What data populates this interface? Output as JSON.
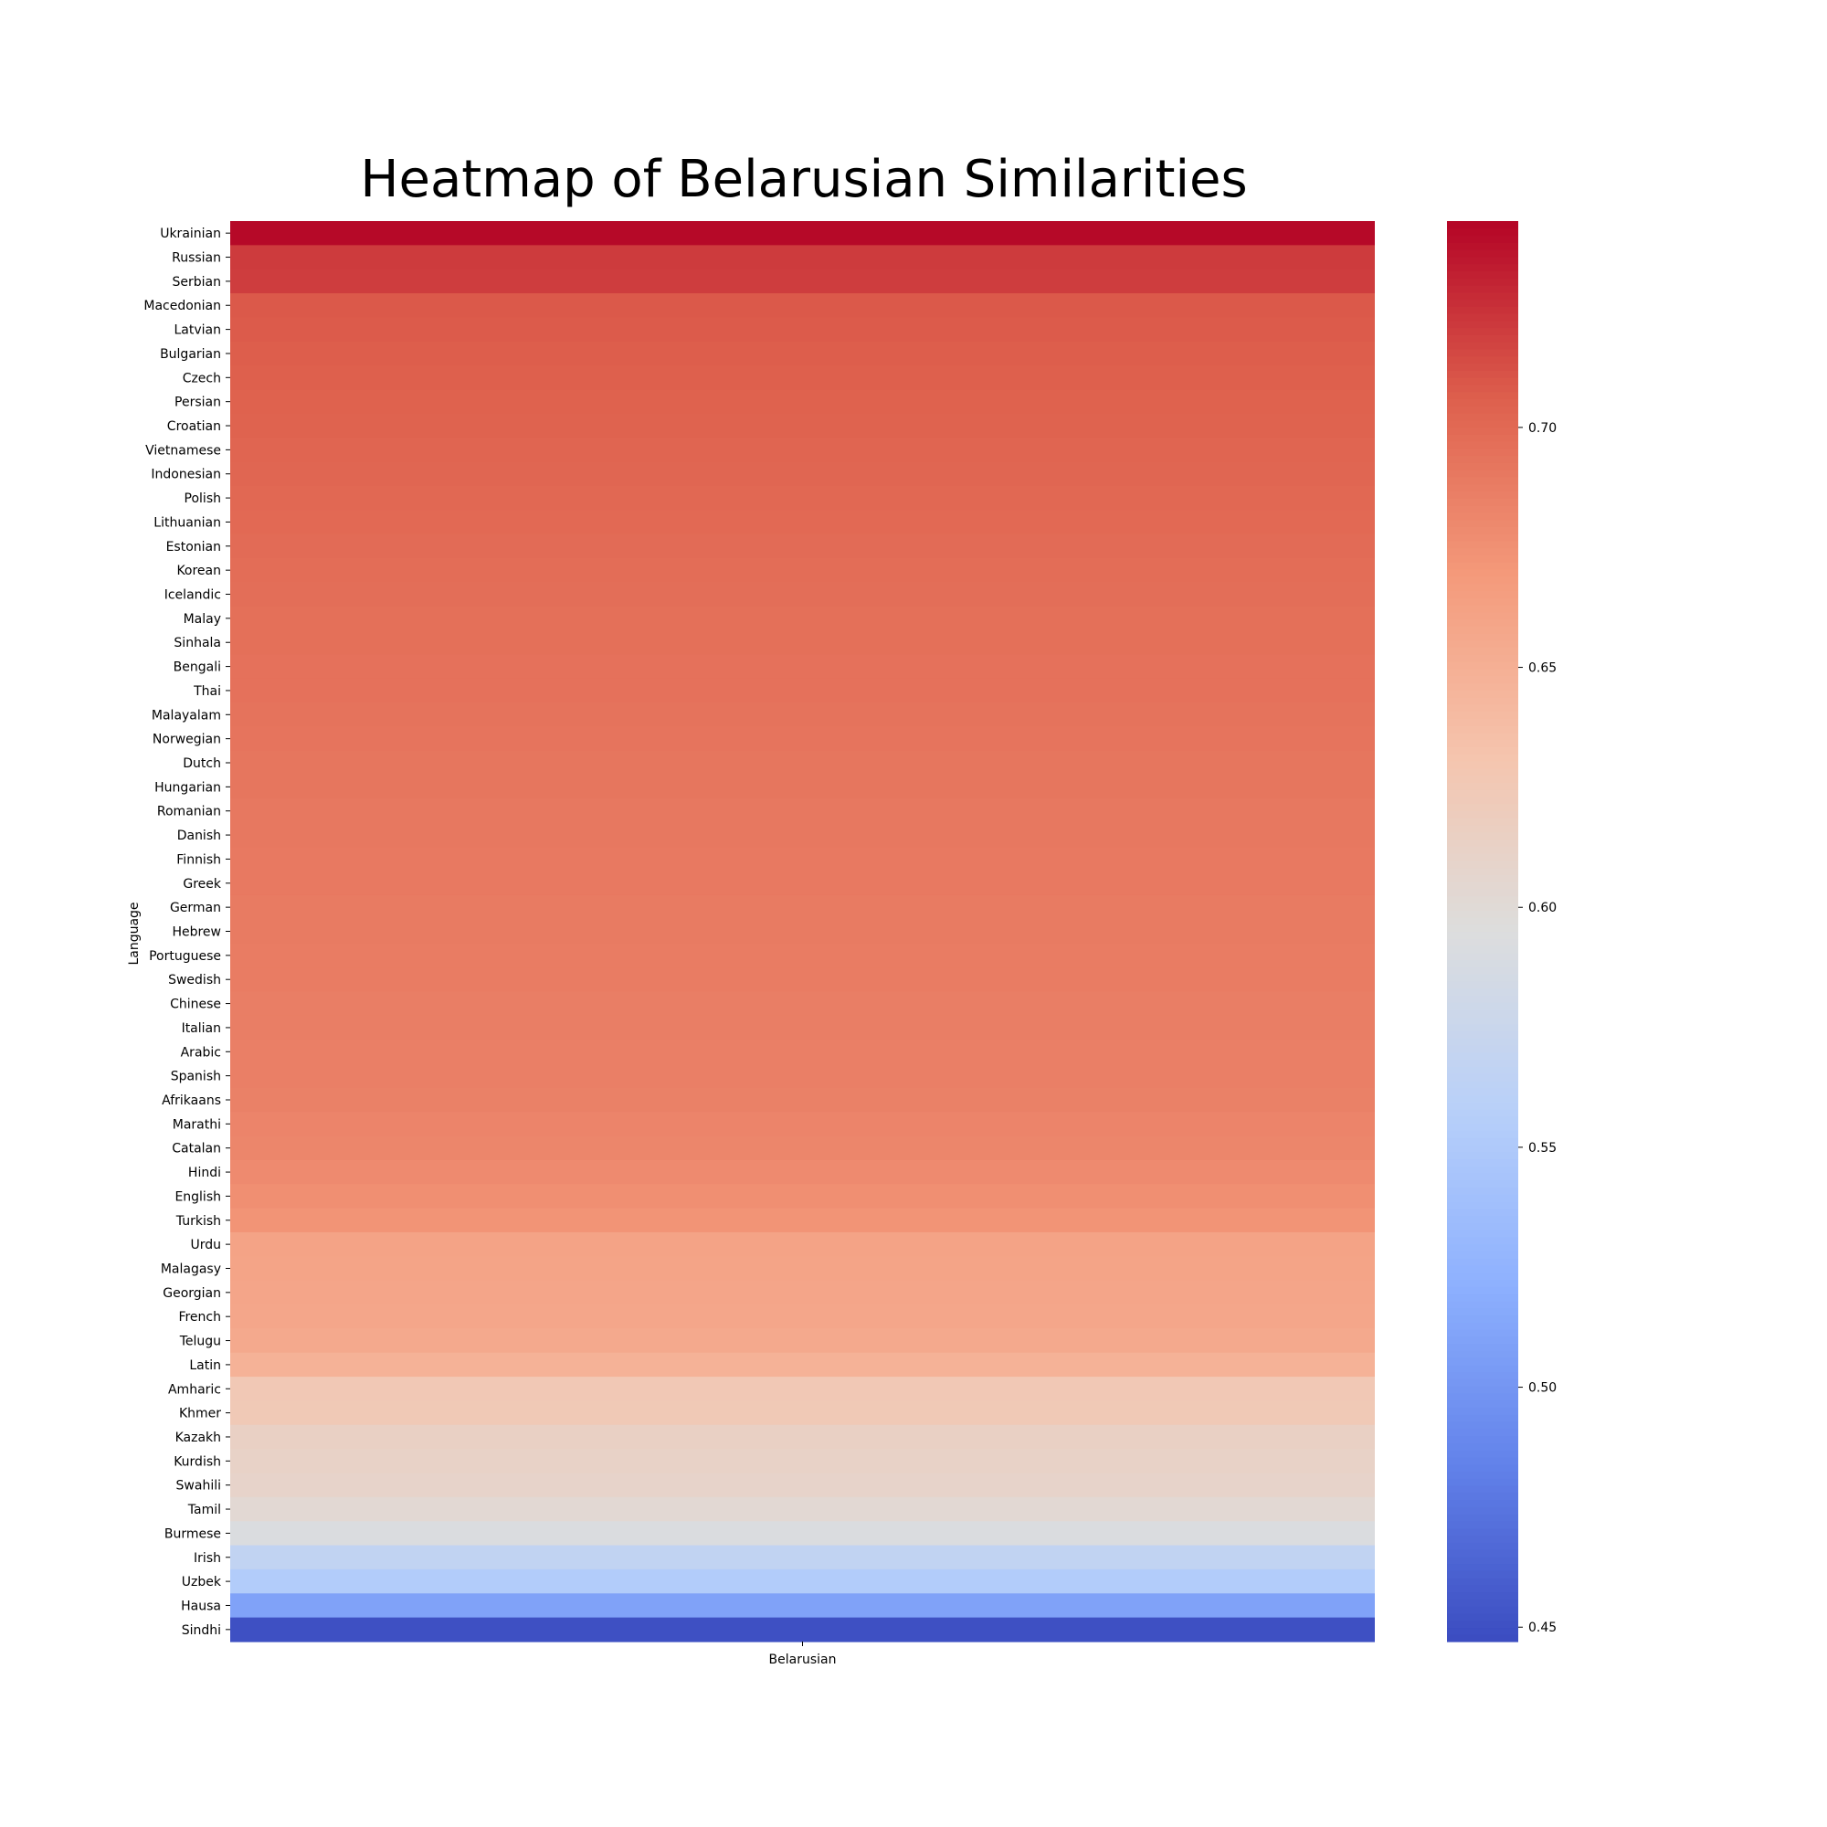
{
  "chart_data": {
    "type": "heatmap",
    "title": "Heatmap of Belarusian Similarities",
    "xlabel": "",
    "ylabel": "Language",
    "columns": [
      "Belarusian"
    ],
    "rows": [
      "Ukrainian",
      "Russian",
      "Serbian",
      "Macedonian",
      "Latvian",
      "Bulgarian",
      "Czech",
      "Persian",
      "Croatian",
      "Vietnamese",
      "Indonesian",
      "Polish",
      "Lithuanian",
      "Estonian",
      "Korean",
      "Icelandic",
      "Malay",
      "Sinhala",
      "Bengali",
      "Thai",
      "Malayalam",
      "Norwegian",
      "Dutch",
      "Hungarian",
      "Romanian",
      "Danish",
      "Finnish",
      "Greek",
      "German",
      "Hebrew",
      "Portuguese",
      "Swedish",
      "Chinese",
      "Italian",
      "Arabic",
      "Spanish",
      "Afrikaans",
      "Marathi",
      "Catalan",
      "Hindi",
      "English",
      "Turkish",
      "Urdu",
      "Malagasy",
      "Georgian",
      "French",
      "Telugu",
      "Latin",
      "Amharic",
      "Khmer",
      "Kazakh",
      "Kurdish",
      "Swahili",
      "Tamil",
      "Burmese",
      "Irish",
      "Uzbek",
      "Hausa",
      "Sindhi"
    ],
    "values": [
      0.741,
      0.721,
      0.72,
      0.709,
      0.708,
      0.707,
      0.706,
      0.705,
      0.704,
      0.703,
      0.702,
      0.701,
      0.7,
      0.699,
      0.698,
      0.697,
      0.696,
      0.696,
      0.695,
      0.695,
      0.694,
      0.693,
      0.692,
      0.692,
      0.691,
      0.691,
      0.69,
      0.69,
      0.689,
      0.689,
      0.688,
      0.688,
      0.687,
      0.687,
      0.686,
      0.686,
      0.685,
      0.683,
      0.682,
      0.679,
      0.676,
      0.673,
      0.661,
      0.66,
      0.659,
      0.658,
      0.656,
      0.648,
      0.626,
      0.625,
      0.614,
      0.612,
      0.61,
      0.603,
      0.592,
      0.567,
      0.553,
      0.51,
      0.45
    ],
    "colorbar": {
      "min": 0.447,
      "max": 0.743,
      "ticks": [
        0.45,
        0.5,
        0.55,
        0.6,
        0.65,
        0.7
      ],
      "tick_labels": [
        "0.45",
        "0.50",
        "0.55",
        "0.60",
        "0.65",
        "0.70"
      ],
      "colormap": "coolwarm"
    },
    "grid": false
  }
}
